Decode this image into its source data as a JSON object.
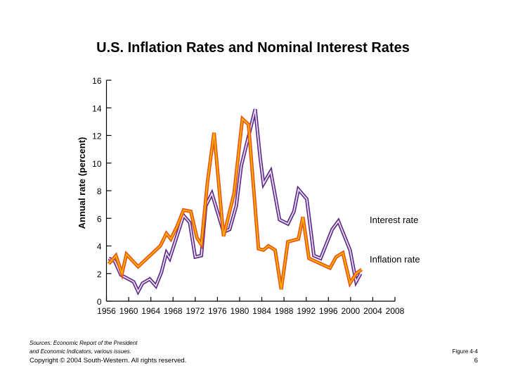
{
  "chart_data": {
    "type": "line",
    "title": "U.S. Inflation Rates and Nominal Interest Rates",
    "xlabel": "",
    "ylabel": "Annual rate (percent)",
    "xlim": [
      1956,
      2008
    ],
    "ylim": [
      0,
      16
    ],
    "x_ticks": [
      "1956",
      "1960",
      "1964",
      "1968",
      "1972",
      "1976",
      "1980",
      "1984",
      "1988",
      "1992",
      "1996",
      "2000",
      "2004",
      "2008"
    ],
    "y_ticks": [
      "0",
      "2",
      "4",
      "6",
      "8",
      "10",
      "12",
      "14",
      "16"
    ],
    "grid": false,
    "legend": "direct labels at right end of lines",
    "series": [
      {
        "name": "Interest rate",
        "color": "#5b2a86",
        "inner_color": "#eadcf3",
        "points": [
          [
            1956.4,
            3.1
          ],
          [
            1957.5,
            2.9
          ],
          [
            1958.6,
            1.9
          ],
          [
            1960.9,
            1.4
          ],
          [
            1961.7,
            0.7
          ],
          [
            1962.5,
            1.3
          ],
          [
            1963.8,
            1.6
          ],
          [
            1964.9,
            1.1
          ],
          [
            1965.9,
            2.1
          ],
          [
            1966.8,
            3.5
          ],
          [
            1967.4,
            3.1
          ],
          [
            1969.9,
            6.2
          ],
          [
            1971.0,
            5.7
          ],
          [
            1972.0,
            3.2
          ],
          [
            1973.1,
            3.3
          ],
          [
            1973.9,
            6.9
          ],
          [
            1975.0,
            7.8
          ],
          [
            1977.1,
            5.0
          ],
          [
            1978.2,
            5.2
          ],
          [
            1979.4,
            6.9
          ],
          [
            1980.3,
            9.8
          ],
          [
            1982.8,
            13.9
          ],
          [
            1983.7,
            10.4
          ],
          [
            1984.3,
            8.5
          ],
          [
            1985.6,
            9.4
          ],
          [
            1987.2,
            5.9
          ],
          [
            1988.7,
            5.6
          ],
          [
            1989.8,
            6.5
          ],
          [
            1990.6,
            8.1
          ],
          [
            1992.1,
            7.4
          ],
          [
            1993.4,
            3.3
          ],
          [
            1994.6,
            3.1
          ],
          [
            1996.7,
            5.2
          ],
          [
            1997.8,
            5.8
          ],
          [
            1999.9,
            3.7
          ],
          [
            2001.0,
            1.4
          ],
          [
            2001.8,
            2.0
          ]
        ]
      },
      {
        "name": "Inflation rate",
        "color": "#e8541a",
        "inner_color": "#f7b500",
        "points": [
          [
            1956.4,
            2.7
          ],
          [
            1957.7,
            3.3
          ],
          [
            1958.8,
            2.0
          ],
          [
            1959.6,
            3.4
          ],
          [
            1961.7,
            2.5
          ],
          [
            1965.7,
            4.0
          ],
          [
            1966.8,
            4.9
          ],
          [
            1967.6,
            4.5
          ],
          [
            1968.7,
            5.4
          ],
          [
            1969.9,
            6.6
          ],
          [
            1971.2,
            6.5
          ],
          [
            1972.3,
            4.6
          ],
          [
            1973.1,
            4.1
          ],
          [
            1974.2,
            8.6
          ],
          [
            1975.4,
            12.2
          ],
          [
            1977.1,
            4.7
          ],
          [
            1979.0,
            7.8
          ],
          [
            1980.5,
            13.2
          ],
          [
            1981.6,
            12.8
          ],
          [
            1983.4,
            3.8
          ],
          [
            1984.3,
            3.7
          ],
          [
            1985.2,
            4.0
          ],
          [
            1986.4,
            3.7
          ],
          [
            1987.5,
            0.85
          ],
          [
            1988.7,
            4.3
          ],
          [
            1990.6,
            4.5
          ],
          [
            1991.4,
            6.1
          ],
          [
            1992.5,
            3.1
          ],
          [
            1996.3,
            2.4
          ],
          [
            1997.4,
            3.2
          ],
          [
            1998.6,
            3.5
          ],
          [
            1999.9,
            1.3
          ],
          [
            2001.0,
            2.0
          ],
          [
            2002.0,
            2.3
          ]
        ]
      }
    ]
  },
  "footer": {
    "sources_line1": "Sources: Economic Report of the President",
    "sources_line2": "and Economic Indicators, various issues.",
    "copyright": "Copyright © 2004 South-Western. All rights reserved.",
    "figure": "Figure 4-4",
    "page_number": "6"
  }
}
